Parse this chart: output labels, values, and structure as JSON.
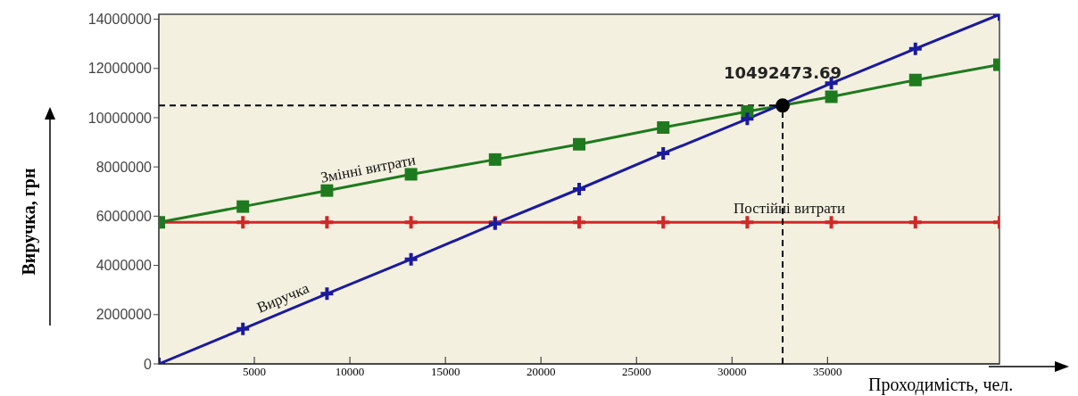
{
  "chart_data": {
    "type": "line",
    "xlabel": "Проходимість, чел.",
    "ylabel": "Виручка, грн",
    "x": [
      0,
      4400,
      8800,
      13200,
      17600,
      22000,
      26400,
      30800,
      35200,
      39600,
      44000
    ],
    "series": [
      {
        "name": "Виручка",
        "color": "#1a1aa0",
        "marker": "cross",
        "values": [
          0,
          1420000,
          2850000,
          4250000,
          5700000,
          7100000,
          8550000,
          9950000,
          11400000,
          12800000,
          14190000
        ]
      },
      {
        "name": "Змінні витрати",
        "color": "#1e7a1e",
        "marker": "square",
        "values": [
          5750000,
          6390000,
          7040000,
          7700000,
          8300000,
          8920000,
          9600000,
          10250000,
          10850000,
          11530000,
          12150000
        ]
      },
      {
        "name": "Постійні витрати",
        "color": "#d02828",
        "marker": "cross",
        "values": [
          5750000,
          5750000,
          5750000,
          5750000,
          5750000,
          5750000,
          5750000,
          5750000,
          5750000,
          5750000,
          5750000
        ]
      }
    ],
    "ref_lines": [
      {
        "axis": "y",
        "value": 10492473.69,
        "color": "#000000",
        "line_style": "dashed"
      },
      {
        "axis": "x",
        "value": 32650,
        "color": "#000000",
        "line_style": "dashed"
      }
    ],
    "annotations": [
      {
        "text": "10492473.69",
        "x": 32650,
        "y": 10492473.69
      }
    ],
    "xlim": [
      0,
      44000
    ],
    "xticks": [
      5000,
      10000,
      15000,
      20000,
      25000,
      30000,
      35000
    ],
    "ylim": [
      0,
      14200000
    ],
    "yticks": [
      0,
      2000000,
      4000000,
      6000000,
      8000000,
      10000000,
      12000000,
      14000000
    ],
    "grid": false,
    "legend": false
  }
}
